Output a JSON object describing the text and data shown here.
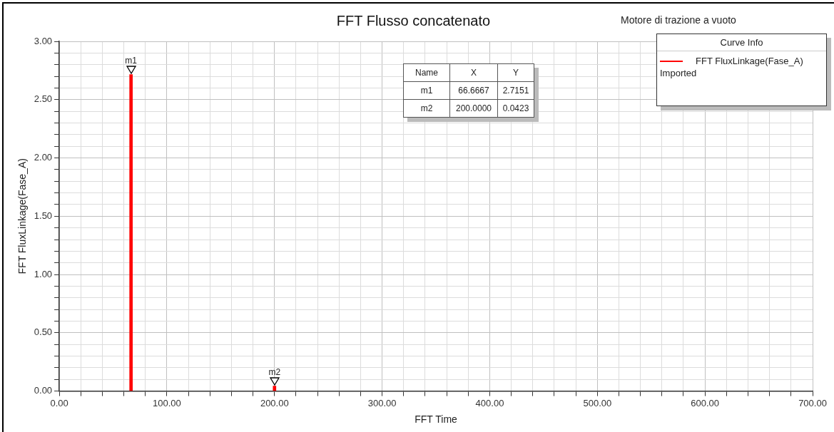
{
  "chart_data": {
    "type": "bar",
    "title": "FFT Flusso concatenato",
    "subtitle": "Motore di trazione a vuoto",
    "xlabel": "FFT Time",
    "ylabel": "FFT FluxLinkage(Fase_A)",
    "legend_title": "Curve Info",
    "legend": "top right",
    "grid": true,
    "x": [
      66.6667,
      200
    ],
    "series": [
      {
        "name": "FFT FluxLinkage(Fase_A)",
        "color": "#ff0000",
        "values": [
          2.7151,
          0.0423
        ]
      }
    ],
    "annotations": [
      {
        "text": "m1",
        "x": 66.6667,
        "y": 2.7151
      },
      {
        "text": "m2",
        "x": 200,
        "y": 0.0423
      },
      "Imported",
      "Name",
      "X",
      "Y",
      "66.6667",
      "200.0000",
      "2.7151",
      "0.0423"
    ],
    "xlim": [
      0,
      700
    ],
    "xticks": [
      {
        "value": 0,
        "label": "0.00"
      },
      {
        "value": 20,
        "label": null
      },
      {
        "value": 40,
        "label": null
      },
      {
        "value": 60,
        "label": null
      },
      {
        "value": 80,
        "label": null
      },
      {
        "value": 100,
        "label": "100.00"
      },
      {
        "value": 120,
        "label": null
      },
      {
        "value": 140,
        "label": null
      },
      {
        "value": 160,
        "label": null
      },
      {
        "value": 180,
        "label": null
      },
      {
        "value": 200,
        "label": "200.00"
      },
      {
        "value": 220,
        "label": null
      },
      {
        "value": 240,
        "label": null
      },
      {
        "value": 260,
        "label": null
      },
      {
        "value": 280,
        "label": null
      },
      {
        "value": 300,
        "label": "300.00"
      },
      {
        "value": 320,
        "label": null
      },
      {
        "value": 340,
        "label": null
      },
      {
        "value": 360,
        "label": null
      },
      {
        "value": 380,
        "label": null
      },
      {
        "value": 400,
        "label": "400.00"
      },
      {
        "value": 420,
        "label": null
      },
      {
        "value": 440,
        "label": null
      },
      {
        "value": 460,
        "label": null
      },
      {
        "value": 480,
        "label": null
      },
      {
        "value": 500,
        "label": "500.00"
      },
      {
        "value": 520,
        "label": null
      },
      {
        "value": 540,
        "label": null
      },
      {
        "value": 560,
        "label": null
      },
      {
        "value": 580,
        "label": null
      },
      {
        "value": 600,
        "label": "600.00"
      },
      {
        "value": 620,
        "label": null
      },
      {
        "value": 640,
        "label": null
      },
      {
        "value": 660,
        "label": null
      },
      {
        "value": 680,
        "label": null
      },
      {
        "value": 700,
        "label": "700.00"
      }
    ],
    "ylim": [
      0,
      3
    ],
    "yticks": [
      {
        "value": 0,
        "label": "0.00"
      },
      {
        "value": 0.1,
        "label": null
      },
      {
        "value": 0.2,
        "label": null
      },
      {
        "value": 0.3,
        "label": null
      },
      {
        "value": 0.4,
        "label": null
      },
      {
        "value": 0.5,
        "label": "0.50"
      },
      {
        "value": 0.6,
        "label": null
      },
      {
        "value": 0.7,
        "label": null
      },
      {
        "value": 0.8,
        "label": null
      },
      {
        "value": 0.9,
        "label": null
      },
      {
        "value": 1,
        "label": "1.00"
      },
      {
        "value": 1.1,
        "label": null
      },
      {
        "value": 1.2,
        "label": null
      },
      {
        "value": 1.3,
        "label": null
      },
      {
        "value": 1.4,
        "label": null
      },
      {
        "value": 1.5,
        "label": "1.50"
      },
      {
        "value": 1.6,
        "label": null
      },
      {
        "value": 1.7,
        "label": null
      },
      {
        "value": 1.8,
        "label": null
      },
      {
        "value": 1.9,
        "label": null
      },
      {
        "value": 2,
        "label": "2.00"
      },
      {
        "value": 2.1,
        "label": null
      },
      {
        "value": 2.2,
        "label": null
      },
      {
        "value": 2.3,
        "label": null
      },
      {
        "value": 2.4,
        "label": null
      },
      {
        "value": 2.5,
        "label": "2.50"
      },
      {
        "value": 2.6,
        "label": null
      },
      {
        "value": 2.7,
        "label": null
      },
      {
        "value": 2.8,
        "label": null
      },
      {
        "value": 2.9,
        "label": null
      },
      {
        "value": 3,
        "label": "3.00"
      }
    ]
  }
}
